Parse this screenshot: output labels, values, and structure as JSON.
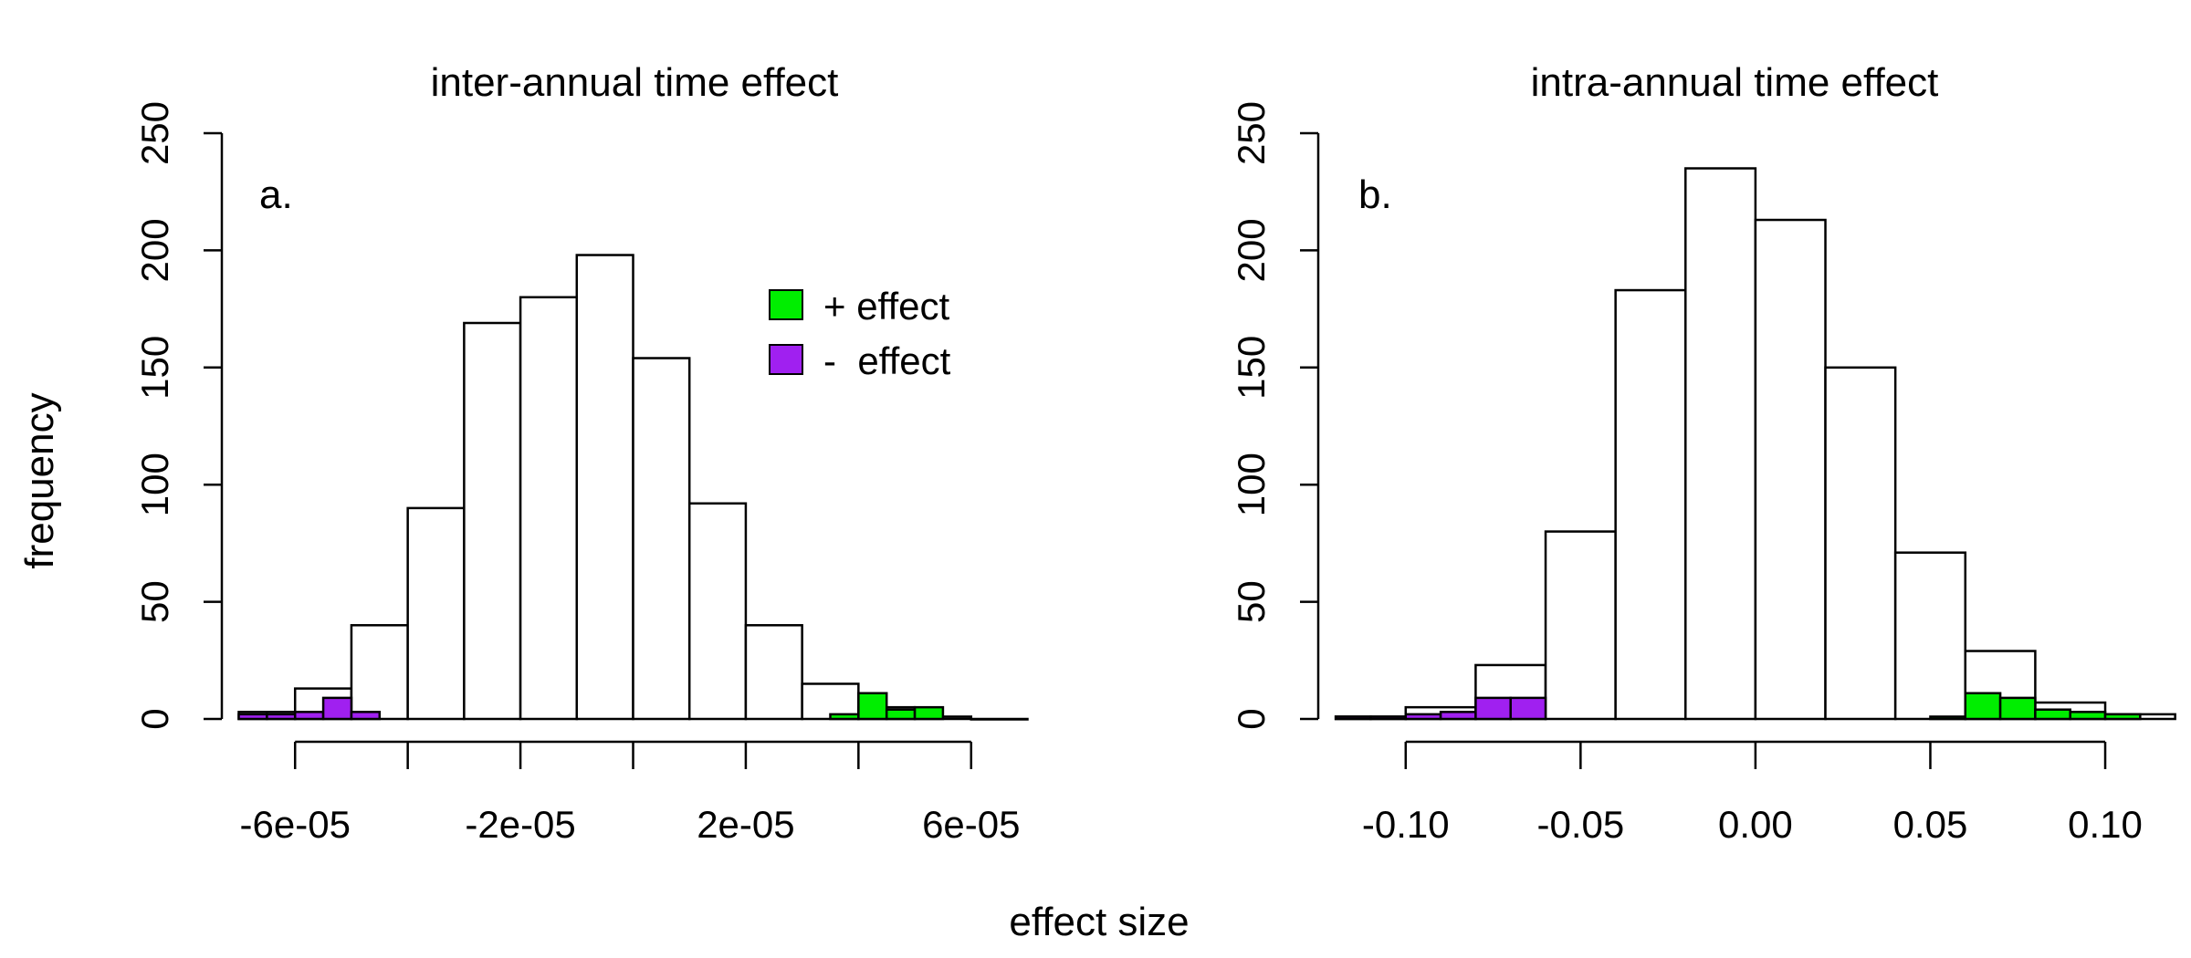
{
  "figure": {
    "shared_ylabel": "frequency",
    "shared_xlabel": "effect size"
  },
  "chart_data": [
    {
      "type": "bar",
      "title": "inter-annual time effect",
      "panel_label": "a.",
      "xlabel": "effect size",
      "ylabel": "frequency",
      "xlim": [
        -7.3e-05,
        7.3e-05
      ],
      "ylim": [
        0,
        250
      ],
      "x_ticks": [
        -6e-05,
        -4e-05,
        -2e-05,
        0,
        2e-05,
        4e-05,
        6e-05
      ],
      "x_tick_labels": [
        "-6e-05",
        "",
        "-2e-05",
        "",
        "2e-05",
        "",
        "6e-05"
      ],
      "y_ticks": [
        0,
        50,
        100,
        150,
        200,
        250
      ],
      "y_tick_labels": [
        "0",
        "50",
        "100",
        "150",
        "200",
        "250"
      ],
      "bin_width": 1e-05,
      "all_effects": {
        "bin_starts": [
          -7e-05,
          -6e-05,
          -5e-05,
          -4e-05,
          -3e-05,
          -2e-05,
          -1e-05,
          0,
          1e-05,
          2e-05,
          3e-05,
          4e-05,
          5e-05,
          6e-05
        ],
        "values": [
          3,
          13,
          40,
          90,
          169,
          180,
          198,
          154,
          92,
          40,
          15,
          5,
          1,
          0
        ]
      },
      "sub_width": 5e-06,
      "negative_effect": {
        "bin_starts": [
          -7e-05,
          -6.5e-05,
          -6e-05,
          -5.5e-05,
          -5e-05
        ],
        "values": [
          2,
          2,
          3,
          9,
          3
        ]
      },
      "positive_effect": {
        "bin_starts": [
          3.5e-05,
          4e-05,
          4.5e-05,
          5e-05
        ],
        "values": [
          2,
          11,
          4,
          5
        ]
      },
      "legend": {
        "placement": "top-right",
        "entries": [
          {
            "name": "+ effect",
            "color": "#00ee00"
          },
          {
            "name": "-  effect",
            "color": "#a020f0"
          }
        ]
      }
    },
    {
      "type": "bar",
      "title": "intra-annual time effect",
      "panel_label": "b.",
      "xlabel": "effect size",
      "ylabel": "frequency",
      "xlim": [
        -0.125,
        0.112
      ],
      "ylim": [
        0,
        250
      ],
      "x_ticks": [
        -0.1,
        -0.05,
        0,
        0.05,
        0.1
      ],
      "x_tick_labels": [
        "-0.10",
        "-0.05",
        "0.00",
        "0.05",
        "0.10"
      ],
      "y_ticks": [
        0,
        50,
        100,
        150,
        200,
        250
      ],
      "y_tick_labels": [
        "0",
        "50",
        "100",
        "150",
        "200",
        "250"
      ],
      "bin_width": 0.02,
      "all_effects": {
        "bin_starts": [
          -0.12,
          -0.1,
          -0.08,
          -0.06,
          -0.04,
          -0.02,
          0,
          0.02,
          0.04,
          0.06,
          0.08,
          0.1
        ],
        "values": [
          1,
          5,
          23,
          80,
          183,
          235,
          213,
          150,
          71,
          29,
          7,
          2
        ]
      },
      "sub_width": 0.01,
      "negative_effect": {
        "bin_starts": [
          -0.12,
          -0.11,
          -0.1,
          -0.09,
          -0.08,
          -0.07
        ],
        "values": [
          1,
          1,
          2,
          3,
          9,
          9
        ]
      },
      "positive_effect": {
        "bin_starts": [
          0.05,
          0.06,
          0.07,
          0.08,
          0.09,
          0.1
        ],
        "values": [
          1,
          11,
          9,
          4,
          3,
          2
        ]
      }
    }
  ],
  "colors": {
    "positive": "#00ee00",
    "negative": "#a020f0",
    "bar_fill": "#ffffff",
    "stroke": "#000000"
  }
}
